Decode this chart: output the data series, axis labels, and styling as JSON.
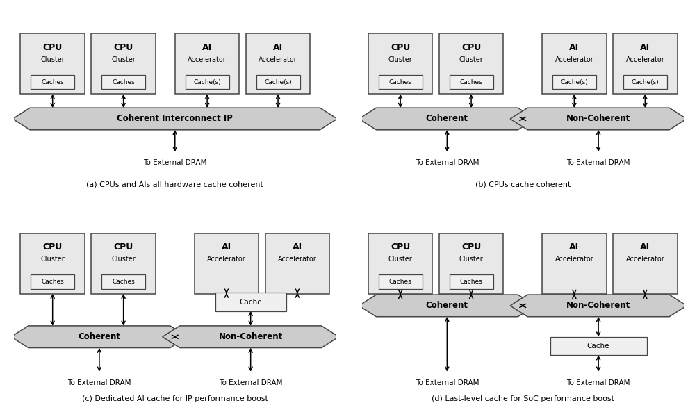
{
  "bg_color": "#ffffff",
  "box_fill": "#e8e8e8",
  "box_edge": "#444444",
  "banner_fill": "#cccccc",
  "banner_edge": "#444444",
  "small_box_fill": "#f0f0f0",
  "small_box_edge": "#444444",
  "text_color": "#000000",
  "diagrams": [
    {
      "label": "(a) CPUs and AIs all hardware cache coherent",
      "banner_text": "Coherent Interconnect IP",
      "nodes": [
        {
          "title": "CPU",
          "sub": "Cluster",
          "cache": "Caches"
        },
        {
          "title": "CPU",
          "sub": "Cluster",
          "cache": "Caches"
        },
        {
          "title": "AI",
          "sub": "Accelerator",
          "cache": "Cache(s)"
        },
        {
          "title": "AI",
          "sub": "Accelerator",
          "cache": "Cache(s)"
        }
      ]
    },
    {
      "label": "(b) CPUs cache coherent",
      "left_banner": "Coherent",
      "right_banner": "Non-Coherent",
      "nodes": [
        {
          "title": "CPU",
          "sub": "Cluster",
          "cache": "Caches"
        },
        {
          "title": "CPU",
          "sub": "Cluster",
          "cache": "Caches"
        },
        {
          "title": "AI",
          "sub": "Accelerator",
          "cache": "Cache(s)"
        },
        {
          "title": "AI",
          "sub": "Accelerator",
          "cache": "Cache(s)"
        }
      ]
    },
    {
      "label": "(c) Dedicated AI cache for IP performance boost",
      "left_banner": "Coherent",
      "right_banner": "Non-Coherent",
      "nodes": [
        {
          "title": "CPU",
          "sub": "Cluster",
          "cache": "Caches"
        },
        {
          "title": "CPU",
          "sub": "Cluster",
          "cache": "Caches"
        },
        {
          "title": "AI",
          "sub": "Accelerator",
          "cache": null
        },
        {
          "title": "AI",
          "sub": "Accelerator",
          "cache": null
        }
      ],
      "mid_cache": true
    },
    {
      "label": "(d) Last-level cache for SoC performance boost",
      "left_banner": "Coherent",
      "right_banner": "Non-Coherent",
      "nodes": [
        {
          "title": "CPU",
          "sub": "Cluster",
          "cache": "Caches"
        },
        {
          "title": "CPU",
          "sub": "Cluster",
          "cache": "Caches"
        },
        {
          "title": "AI",
          "sub": "Accelerator",
          "cache": null
        },
        {
          "title": "AI",
          "sub": "Accelerator",
          "cache": null
        }
      ],
      "bottom_cache": true
    }
  ]
}
